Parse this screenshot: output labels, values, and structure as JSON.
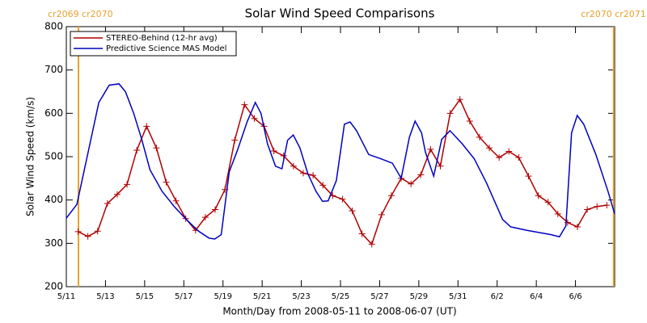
{
  "chart_data": {
    "type": "line",
    "title": "Solar Wind Speed Comparisons",
    "x_label": "Month/Day from 2008-05-11 to 2008-06-07 (UT)",
    "y_label": "Solar Wind Speed (km/s)",
    "xlim": [
      0,
      28
    ],
    "ylim": [
      200,
      800
    ],
    "xticks": [
      {
        "value": 0,
        "label": "5/11"
      },
      {
        "value": 2,
        "label": "5/13"
      },
      {
        "value": 4,
        "label": "5/15"
      },
      {
        "value": 6,
        "label": "5/17"
      },
      {
        "value": 8,
        "label": "5/19"
      },
      {
        "value": 10,
        "label": "5/21"
      },
      {
        "value": 12,
        "label": "5/23"
      },
      {
        "value": 14,
        "label": "5/25"
      },
      {
        "value": 16,
        "label": "5/27"
      },
      {
        "value": 18,
        "label": "5/29"
      },
      {
        "value": 20,
        "label": "5/31"
      },
      {
        "value": 22,
        "label": "6/2"
      },
      {
        "value": 24,
        "label": "6/4"
      },
      {
        "value": 26,
        "label": "6/6"
      }
    ],
    "yticks": [
      200,
      300,
      400,
      500,
      600,
      700,
      800
    ],
    "legend": "upper left",
    "annotations": [
      {
        "text": "cr2069 cr2070",
        "x": 0.62,
        "color": "#e8a030"
      },
      {
        "text": "cr2070 cr2071",
        "x": 27.95,
        "color": "#e8a030"
      }
    ],
    "series": [
      {
        "name": "STEREO-Behind (12-hr avg)",
        "color": "#b00000",
        "marker": "+",
        "x": [
          0.6,
          1.1,
          1.6,
          2.1,
          2.6,
          3.1,
          3.6,
          4.1,
          4.6,
          5.1,
          5.6,
          6.1,
          6.6,
          7.1,
          7.6,
          8.1,
          8.6,
          9.1,
          9.6,
          10.1,
          10.6,
          11.1,
          11.6,
          12.1,
          12.6,
          13.1,
          13.6,
          14.1,
          14.6,
          15.1,
          15.6,
          16.1,
          16.6,
          17.1,
          17.6,
          18.1,
          18.6,
          19.1,
          19.6,
          20.1,
          20.6,
          21.1,
          21.6,
          22.1,
          22.6,
          23.1,
          23.6,
          24.1,
          24.6,
          25.1,
          25.6,
          26.1,
          26.6,
          27.1,
          27.6
        ],
        "values": [
          327,
          316,
          328,
          392,
          413,
          436,
          515,
          570,
          520,
          441,
          398,
          357,
          330,
          360,
          378,
          424,
          538,
          620,
          588,
          570,
          513,
          502,
          478,
          462,
          457,
          434,
          410,
          402,
          375,
          322,
          298,
          366,
          410,
          450,
          437,
          458,
          517,
          478,
          600,
          632,
          582,
          545,
          520,
          498,
          512,
          498,
          455,
          410,
          395,
          368,
          348,
          338,
          378,
          385,
          388
        ]
      },
      {
        "name": "Predictive Science MAS Model",
        "color": "#0000c0",
        "x": [
          0,
          0.54,
          1.16,
          1.66,
          2.19,
          2.69,
          3.02,
          3.44,
          3.85,
          4.27,
          4.89,
          5.51,
          6.13,
          6.75,
          7.29,
          7.58,
          7.91,
          8.32,
          8.74,
          9.23,
          9.65,
          9.94,
          10.27,
          10.68,
          11.01,
          11.3,
          11.59,
          11.93,
          12.34,
          12.75,
          13.08,
          13.37,
          13.79,
          14.2,
          14.49,
          14.82,
          15.44,
          16.07,
          16.65,
          17.1,
          17.52,
          17.81,
          18.14,
          18.34,
          18.76,
          19.17,
          19.59,
          20.21,
          20.83,
          21.45,
          22.28,
          22.69,
          23.52,
          24.76,
          25.18,
          25.51,
          25.8,
          26.09,
          26.42,
          27.04,
          27.66,
          28
        ],
        "values": [
          358,
          390,
          520,
          625,
          665,
          668,
          650,
          600,
          540,
          470,
          420,
          385,
          355,
          328,
          312,
          310,
          320,
          465,
          515,
          580,
          625,
          600,
          530,
          478,
          472,
          538,
          550,
          520,
          460,
          420,
          397,
          398,
          445,
          575,
          580,
          560,
          505,
          495,
          485,
          450,
          545,
          582,
          555,
          510,
          455,
          540,
          560,
          530,
          495,
          440,
          355,
          338,
          330,
          320,
          315,
          340,
          555,
          595,
          575,
          505,
          420,
          368
        ]
      }
    ]
  }
}
